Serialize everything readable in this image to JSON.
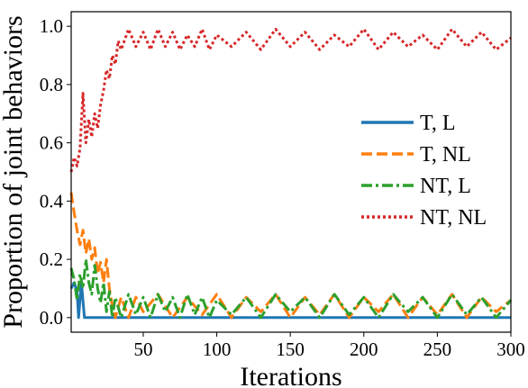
{
  "chart_data": {
    "type": "line",
    "title": "",
    "xlabel": "Iterations",
    "ylabel": "Proportion of joint behaviors",
    "xlim": [
      1,
      300
    ],
    "ylim": [
      -0.05,
      1.05
    ],
    "xticks": [
      "50",
      "100",
      "150",
      "200",
      "250",
      "300"
    ],
    "xtick_values": [
      50,
      100,
      150,
      200,
      250,
      300
    ],
    "yticks": [
      "0.0",
      "0.2",
      "0.4",
      "0.6",
      "0.8",
      "1.0"
    ],
    "ytick_values": [
      0.0,
      0.2,
      0.4,
      0.6,
      0.8,
      1.0
    ],
    "grid": false,
    "legend_position": "center-right",
    "series": [
      {
        "name": "T, L",
        "color": "#1f77b4",
        "style": "solid",
        "points": [
          [
            1,
            0.1
          ],
          [
            3,
            0.12
          ],
          [
            5,
            0.09
          ],
          [
            6,
            0.0
          ],
          [
            8,
            0.12
          ],
          [
            10,
            0.0
          ],
          [
            15,
            0.0
          ],
          [
            20,
            0.0
          ],
          [
            25,
            0.0
          ],
          [
            30,
            0.0
          ],
          [
            50,
            0.0
          ],
          [
            100,
            0.0
          ],
          [
            150,
            0.0
          ],
          [
            200,
            0.0
          ],
          [
            250,
            0.0
          ],
          [
            300,
            0.0
          ]
        ]
      },
      {
        "name": "T, NL",
        "color": "#ff7f0e",
        "style": "dashed",
        "points": [
          [
            1,
            0.43
          ],
          [
            3,
            0.36
          ],
          [
            5,
            0.3
          ],
          [
            7,
            0.25
          ],
          [
            9,
            0.3
          ],
          [
            11,
            0.22
          ],
          [
            13,
            0.27
          ],
          [
            15,
            0.2
          ],
          [
            17,
            0.24
          ],
          [
            19,
            0.15
          ],
          [
            21,
            0.19
          ],
          [
            23,
            0.12
          ],
          [
            25,
            0.2
          ],
          [
            27,
            0.1
          ],
          [
            29,
            0.04
          ],
          [
            31,
            0.0
          ],
          [
            35,
            0.07
          ],
          [
            40,
            0.0
          ],
          [
            45,
            0.07
          ],
          [
            50,
            0.02
          ],
          [
            60,
            0.08
          ],
          [
            70,
            0.0
          ],
          [
            80,
            0.07
          ],
          [
            90,
            0.01
          ],
          [
            100,
            0.08
          ],
          [
            110,
            0.0
          ],
          [
            120,
            0.07
          ],
          [
            130,
            0.02
          ],
          [
            140,
            0.08
          ],
          [
            150,
            0.0
          ],
          [
            160,
            0.07
          ],
          [
            170,
            0.01
          ],
          [
            180,
            0.08
          ],
          [
            190,
            0.0
          ],
          [
            200,
            0.07
          ],
          [
            210,
            0.02
          ],
          [
            220,
            0.08
          ],
          [
            230,
            0.0
          ],
          [
            240,
            0.07
          ],
          [
            250,
            0.01
          ],
          [
            260,
            0.08
          ],
          [
            270,
            0.0
          ],
          [
            280,
            0.07
          ],
          [
            290,
            0.02
          ],
          [
            300,
            0.06
          ]
        ]
      },
      {
        "name": "NT, L",
        "color": "#2ca02c",
        "style": "dashdot",
        "points": [
          [
            1,
            0.17
          ],
          [
            3,
            0.13
          ],
          [
            5,
            0.06
          ],
          [
            7,
            0.15
          ],
          [
            9,
            0.1
          ],
          [
            11,
            0.2
          ],
          [
            13,
            0.12
          ],
          [
            15,
            0.08
          ],
          [
            17,
            0.18
          ],
          [
            19,
            0.1
          ],
          [
            21,
            0.05
          ],
          [
            23,
            0.12
          ],
          [
            25,
            0.02
          ],
          [
            27,
            0.09
          ],
          [
            29,
            0.0
          ],
          [
            31,
            0.07
          ],
          [
            35,
            0.0
          ],
          [
            40,
            0.08
          ],
          [
            45,
            0.01
          ],
          [
            50,
            0.07
          ],
          [
            55,
            0.0
          ],
          [
            60,
            0.08
          ],
          [
            65,
            0.02
          ],
          [
            70,
            0.07
          ],
          [
            75,
            0.0
          ],
          [
            80,
            0.08
          ],
          [
            85,
            0.01
          ],
          [
            90,
            0.07
          ],
          [
            95,
            0.0
          ],
          [
            100,
            0.06
          ],
          [
            110,
            0.01
          ],
          [
            120,
            0.07
          ],
          [
            130,
            0.0
          ],
          [
            140,
            0.08
          ],
          [
            150,
            0.02
          ],
          [
            160,
            0.07
          ],
          [
            170,
            0.0
          ],
          [
            180,
            0.08
          ],
          [
            190,
            0.01
          ],
          [
            200,
            0.07
          ],
          [
            210,
            0.0
          ],
          [
            220,
            0.08
          ],
          [
            230,
            0.02
          ],
          [
            240,
            0.07
          ],
          [
            250,
            0.0
          ],
          [
            260,
            0.08
          ],
          [
            270,
            0.01
          ],
          [
            280,
            0.07
          ],
          [
            290,
            0.0
          ],
          [
            300,
            0.06
          ]
        ]
      },
      {
        "name": "NT, NL",
        "color": "#d62728",
        "style": "dotted",
        "points": [
          [
            1,
            0.5
          ],
          [
            3,
            0.55
          ],
          [
            5,
            0.52
          ],
          [
            7,
            0.58
          ],
          [
            9,
            0.77
          ],
          [
            11,
            0.6
          ],
          [
            13,
            0.68
          ],
          [
            15,
            0.62
          ],
          [
            17,
            0.7
          ],
          [
            19,
            0.65
          ],
          [
            21,
            0.73
          ],
          [
            23,
            0.78
          ],
          [
            25,
            0.85
          ],
          [
            27,
            0.82
          ],
          [
            29,
            0.9
          ],
          [
            31,
            0.87
          ],
          [
            33,
            0.95
          ],
          [
            35,
            0.92
          ],
          [
            40,
            0.99
          ],
          [
            45,
            0.93
          ],
          [
            50,
            0.98
          ],
          [
            55,
            0.92
          ],
          [
            60,
            0.99
          ],
          [
            65,
            0.93
          ],
          [
            70,
            0.98
          ],
          [
            75,
            0.92
          ],
          [
            80,
            0.97
          ],
          [
            85,
            0.93
          ],
          [
            90,
            0.99
          ],
          [
            95,
            0.92
          ],
          [
            100,
            0.97
          ],
          [
            110,
            0.93
          ],
          [
            120,
            0.98
          ],
          [
            130,
            0.92
          ],
          [
            140,
            0.99
          ],
          [
            150,
            0.93
          ],
          [
            160,
            0.98
          ],
          [
            170,
            0.92
          ],
          [
            180,
            0.97
          ],
          [
            190,
            0.93
          ],
          [
            200,
            0.99
          ],
          [
            210,
            0.92
          ],
          [
            220,
            0.98
          ],
          [
            230,
            0.93
          ],
          [
            240,
            0.97
          ],
          [
            250,
            0.92
          ],
          [
            260,
            0.99
          ],
          [
            270,
            0.93
          ],
          [
            280,
            0.98
          ],
          [
            290,
            0.92
          ],
          [
            300,
            0.96
          ]
        ]
      }
    ]
  }
}
